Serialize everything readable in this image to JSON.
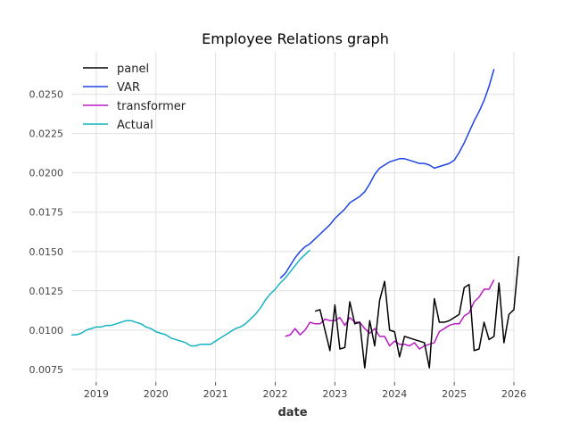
{
  "chart_data": {
    "type": "line",
    "title": "Employee Relations graph",
    "xlabel": "date",
    "ylabel": "",
    "x_ticks": [
      "2019",
      "2020",
      "2021",
      "2022",
      "2023",
      "2024",
      "2025",
      "2026"
    ],
    "y_ticks": [
      "0.0075",
      "0.0100",
      "0.0125",
      "0.0150",
      "0.0175",
      "0.0200",
      "0.0225",
      "0.0250"
    ],
    "xlim": [
      "2018-08",
      "2026-01"
    ],
    "ylim": [
      0.0067,
      0.0277
    ],
    "grid": true,
    "legend_position": "top-left",
    "series": [
      {
        "name": "panel",
        "color": "#000000",
        "points": [
          [
            "2022-09",
            0.0112
          ],
          [
            "2022-10",
            0.0113
          ],
          [
            "2022-11",
            0.01
          ],
          [
            "2022-12",
            0.0087
          ],
          [
            "2023-01",
            0.0116
          ],
          [
            "2023-02",
            0.0088
          ],
          [
            "2023-03",
            0.0089
          ],
          [
            "2023-04",
            0.0118
          ],
          [
            "2023-05",
            0.0104
          ],
          [
            "2023-06",
            0.0105
          ],
          [
            "2023-07",
            0.0076
          ],
          [
            "2023-08",
            0.0106
          ],
          [
            "2023-09",
            0.009
          ],
          [
            "2023-10",
            0.0119
          ],
          [
            "2023-11",
            0.0131
          ],
          [
            "2023-12",
            0.01
          ],
          [
            "2024-01",
            0.0099
          ],
          [
            "2024-02",
            0.0083
          ],
          [
            "2024-03",
            0.0096
          ],
          [
            "2024-04",
            0.0095
          ],
          [
            "2024-05",
            0.0094
          ],
          [
            "2024-06",
            0.0093
          ],
          [
            "2024-07",
            0.0092
          ],
          [
            "2024-08",
            0.0076
          ],
          [
            "2024-09",
            0.012
          ],
          [
            "2024-10",
            0.0105
          ],
          [
            "2024-11",
            0.0105
          ],
          [
            "2024-12",
            0.0106
          ],
          [
            "2025-01",
            0.0108
          ],
          [
            "2025-02",
            0.011
          ],
          [
            "2025-03",
            0.0127
          ],
          [
            "2025-04",
            0.0129
          ],
          [
            "2025-05",
            0.0087
          ],
          [
            "2025-06",
            0.0088
          ],
          [
            "2025-07",
            0.0105
          ],
          [
            "2025-08",
            0.0094
          ],
          [
            "2025-09",
            0.0096
          ],
          [
            "2025-10",
            0.013
          ],
          [
            "2025-11",
            0.0092
          ],
          [
            "2025-12",
            0.011
          ],
          [
            "2026-01",
            0.0113
          ],
          [
            "2026-02",
            0.0147
          ]
        ]
      },
      {
        "name": "VAR",
        "color": "#1f44e6",
        "points": [
          [
            "2022-02",
            0.0133
          ],
          [
            "2022-03",
            0.0136
          ],
          [
            "2022-04",
            0.0141
          ],
          [
            "2022-05",
            0.0146
          ],
          [
            "2022-06",
            0.015
          ],
          [
            "2022-07",
            0.0153
          ],
          [
            "2022-08",
            0.0155
          ],
          [
            "2022-09",
            0.0158
          ],
          [
            "2022-10",
            0.0161
          ],
          [
            "2022-11",
            0.0164
          ],
          [
            "2022-12",
            0.0167
          ],
          [
            "2023-01",
            0.0171
          ],
          [
            "2023-02",
            0.0174
          ],
          [
            "2023-03",
            0.0177
          ],
          [
            "2023-04",
            0.0181
          ],
          [
            "2023-05",
            0.0183
          ],
          [
            "2023-06",
            0.0185
          ],
          [
            "2023-07",
            0.0188
          ],
          [
            "2023-08",
            0.0193
          ],
          [
            "2023-09",
            0.0199
          ],
          [
            "2023-10",
            0.0203
          ],
          [
            "2023-11",
            0.0205
          ],
          [
            "2023-12",
            0.0207
          ],
          [
            "2024-01",
            0.0208
          ],
          [
            "2024-02",
            0.0209
          ],
          [
            "2024-03",
            0.0209
          ],
          [
            "2024-04",
            0.0208
          ],
          [
            "2024-05",
            0.0207
          ],
          [
            "2024-06",
            0.0206
          ],
          [
            "2024-07",
            0.0206
          ],
          [
            "2024-08",
            0.0205
          ],
          [
            "2024-09",
            0.0203
          ],
          [
            "2024-10",
            0.0204
          ],
          [
            "2024-11",
            0.0205
          ],
          [
            "2024-12",
            0.0206
          ],
          [
            "2025-01",
            0.0208
          ],
          [
            "2025-02",
            0.0213
          ],
          [
            "2025-03",
            0.0219
          ],
          [
            "2025-04",
            0.0226
          ],
          [
            "2025-05",
            0.0233
          ],
          [
            "2025-06",
            0.0239
          ],
          [
            "2025-07",
            0.0246
          ],
          [
            "2025-08",
            0.0255
          ],
          [
            "2025-09",
            0.0266
          ]
        ]
      },
      {
        "name": "transformer",
        "color": "#b81cc6",
        "points": [
          [
            "2022-03",
            0.0096
          ],
          [
            "2022-04",
            0.0097
          ],
          [
            "2022-05",
            0.0101
          ],
          [
            "2022-06",
            0.0097
          ],
          [
            "2022-07",
            0.01
          ],
          [
            "2022-08",
            0.0105
          ],
          [
            "2022-09",
            0.0104
          ],
          [
            "2022-10",
            0.0104
          ],
          [
            "2022-11",
            0.0107
          ],
          [
            "2022-12",
            0.0106
          ],
          [
            "2023-01",
            0.0106
          ],
          [
            "2023-02",
            0.0108
          ],
          [
            "2023-03",
            0.0103
          ],
          [
            "2023-04",
            0.0108
          ],
          [
            "2023-05",
            0.0105
          ],
          [
            "2023-06",
            0.0105
          ],
          [
            "2023-07",
            0.0101
          ],
          [
            "2023-08",
            0.0098
          ],
          [
            "2023-09",
            0.0101
          ],
          [
            "2023-10",
            0.0096
          ],
          [
            "2023-11",
            0.0096
          ],
          [
            "2023-12",
            0.009
          ],
          [
            "2024-01",
            0.0093
          ],
          [
            "2024-02",
            0.0091
          ],
          [
            "2024-03",
            0.0091
          ],
          [
            "2024-04",
            0.009
          ],
          [
            "2024-05",
            0.0092
          ],
          [
            "2024-06",
            0.0088
          ],
          [
            "2024-07",
            0.009
          ],
          [
            "2024-08",
            0.0091
          ],
          [
            "2024-09",
            0.0092
          ],
          [
            "2024-10",
            0.0099
          ],
          [
            "2024-11",
            0.0101
          ],
          [
            "2024-12",
            0.0103
          ],
          [
            "2025-01",
            0.0104
          ],
          [
            "2025-02",
            0.0104
          ],
          [
            "2025-03",
            0.0109
          ],
          [
            "2025-04",
            0.0111
          ],
          [
            "2025-05",
            0.0118
          ],
          [
            "2025-06",
            0.0121
          ],
          [
            "2025-07",
            0.0126
          ],
          [
            "2025-08",
            0.0126
          ],
          [
            "2025-09",
            0.0132
          ]
        ]
      },
      {
        "name": "Actual",
        "color": "#17b3c3",
        "points": [
          [
            "2018-08",
            0.0097
          ],
          [
            "2018-09",
            0.0097
          ],
          [
            "2018-10",
            0.0098
          ],
          [
            "2018-11",
            0.01
          ],
          [
            "2018-12",
            0.0101
          ],
          [
            "2019-01",
            0.0102
          ],
          [
            "2019-02",
            0.0102
          ],
          [
            "2019-03",
            0.0103
          ],
          [
            "2019-04",
            0.0103
          ],
          [
            "2019-05",
            0.0104
          ],
          [
            "2019-06",
            0.0105
          ],
          [
            "2019-07",
            0.0106
          ],
          [
            "2019-08",
            0.0106
          ],
          [
            "2019-09",
            0.0105
          ],
          [
            "2019-10",
            0.0104
          ],
          [
            "2019-11",
            0.0102
          ],
          [
            "2019-12",
            0.0101
          ],
          [
            "2020-01",
            0.0099
          ],
          [
            "2020-02",
            0.0098
          ],
          [
            "2020-03",
            0.0097
          ],
          [
            "2020-04",
            0.0095
          ],
          [
            "2020-05",
            0.0094
          ],
          [
            "2020-06",
            0.0093
          ],
          [
            "2020-07",
            0.0092
          ],
          [
            "2020-08",
            0.009
          ],
          [
            "2020-09",
            0.009
          ],
          [
            "2020-10",
            0.0091
          ],
          [
            "2020-11",
            0.0091
          ],
          [
            "2020-12",
            0.0091
          ],
          [
            "2021-01",
            0.0093
          ],
          [
            "2021-02",
            0.0095
          ],
          [
            "2021-03",
            0.0097
          ],
          [
            "2021-04",
            0.0099
          ],
          [
            "2021-05",
            0.0101
          ],
          [
            "2021-06",
            0.0102
          ],
          [
            "2021-07",
            0.0104
          ],
          [
            "2021-08",
            0.0107
          ],
          [
            "2021-09",
            0.011
          ],
          [
            "2021-10",
            0.0114
          ],
          [
            "2021-11",
            0.0119
          ],
          [
            "2021-12",
            0.0123
          ],
          [
            "2022-01",
            0.0126
          ],
          [
            "2022-02",
            0.013
          ],
          [
            "2022-03",
            0.0133
          ],
          [
            "2022-04",
            0.0137
          ],
          [
            "2022-05",
            0.0141
          ],
          [
            "2022-06",
            0.0145
          ],
          [
            "2022-07",
            0.0148
          ],
          [
            "2022-08",
            0.0151
          ]
        ]
      }
    ]
  }
}
